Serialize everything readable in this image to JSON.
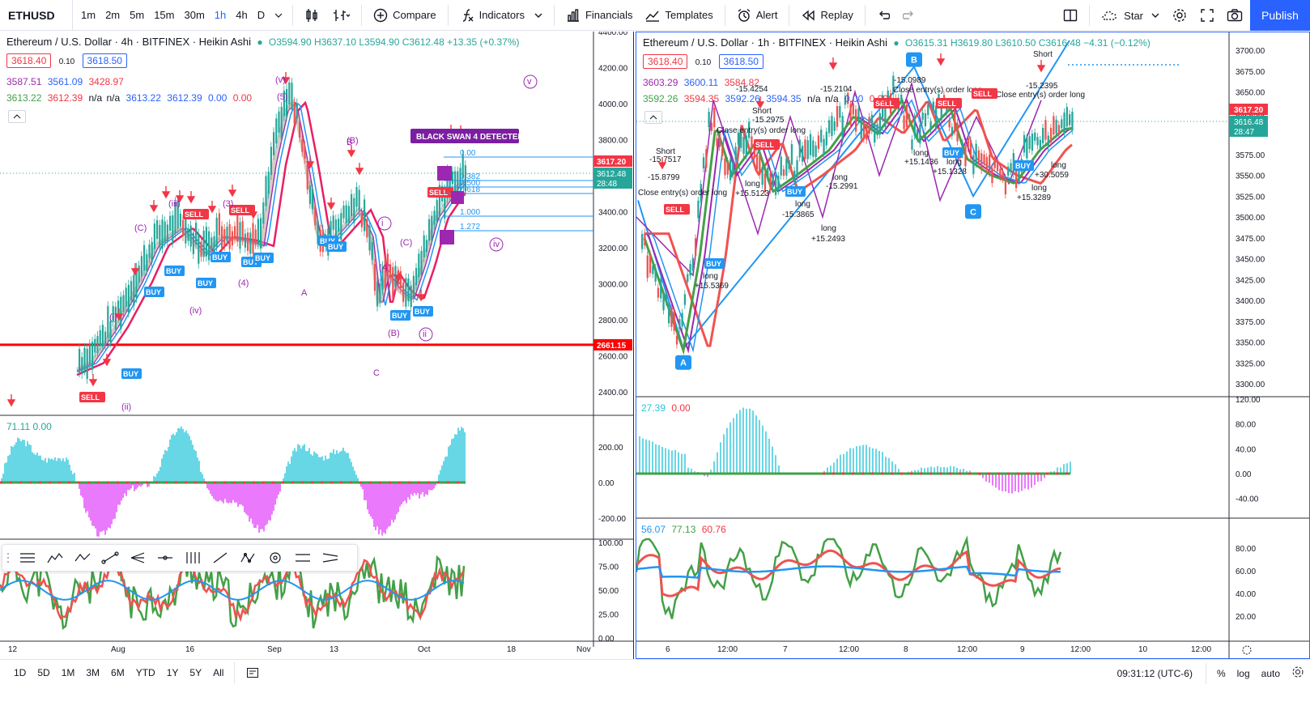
{
  "toolbar": {
    "symbol": "ETHUSD",
    "timeframes": [
      "1m",
      "2m",
      "5m",
      "15m",
      "30m",
      "1h",
      "4h",
      "D"
    ],
    "active_timeframe": "1h",
    "compare": "Compare",
    "indicators": "Indicators",
    "financials": "Financials",
    "templates": "Templates",
    "alert": "Alert",
    "replay": "Replay",
    "star": "Star",
    "publish": "Publish"
  },
  "left_chart": {
    "title": "Ethereum / U.S. Dollar · 4h · BITFINEX · Heikin Ashi",
    "ohlc": "O3594.90 H3637.10 L3594.90 C3612.48 +13.35 (+0.37%)",
    "sell_price": "3618.40",
    "spread": "0.10",
    "buy_price": "3618.50",
    "ind1": [
      "3587.51",
      "3561.09",
      "3428.97"
    ],
    "ind2": [
      "3613.22",
      "3612.39",
      "n/a",
      "n/a",
      "3613.22",
      "3612.39",
      "0.00",
      "0.00"
    ],
    "price_axis": [
      "4400.00",
      "4200.00",
      "4000.00",
      "3800.00",
      "3600.00",
      "3400.00",
      "3200.00",
      "3000.00",
      "2800.00",
      "2600.00",
      "2400.00"
    ],
    "last_price": "3617.20",
    "close_price": "3612.48",
    "countdown": "28:48",
    "support_price": "2661.15",
    "banner": "BLACK SWAN 4 DETECTED",
    "osc_legend": "71.11  0.00",
    "osc_axis": [
      "200.00",
      "0.00",
      "-200.00"
    ],
    "rsi_axis": [
      "100.00",
      "75.00",
      "50.00",
      "25.00",
      "0.00"
    ],
    "time_axis": [
      "12",
      "Aug",
      "16",
      "Sep",
      "13",
      "Oct",
      "18",
      "Nov"
    ],
    "wave_labels": [
      "(v)",
      "v",
      "(iii)",
      "(i)",
      "(ii)",
      "(iv)",
      "iv",
      "ii",
      "i",
      "(3)",
      "(4)",
      "(5)",
      "(B)",
      "(C)",
      "(A)",
      "(B)",
      "A",
      "B",
      "C",
      "(C)"
    ],
    "fib_labels": [
      "0.500",
      "0.382",
      "0.618",
      "1.000",
      "1.272",
      "0.00"
    ]
  },
  "right_chart": {
    "title": "Ethereum / U.S. Dollar · 1h · BITFINEX · Heikin Ashi",
    "ohlc": "O3615.31 H3619.80 L3610.50 C3616.48 −4.31 (−0.12%)",
    "sell_price": "3618.40",
    "spread": "0.10",
    "buy_price": "3618.50",
    "ind1": [
      "3603.29",
      "3600.11",
      "3584.82"
    ],
    "ind2": [
      "3592.26",
      "3594.35",
      "3592.26",
      "3594.35",
      "n/a",
      "n/a",
      "0.00",
      "0.00"
    ],
    "price_axis": [
      "3700.00",
      "3675.00",
      "3650.00",
      "3625.00",
      "3600.00",
      "3575.00",
      "3550.00",
      "3525.00",
      "3500.00",
      "3475.00",
      "3450.00",
      "3425.00",
      "3400.00",
      "3375.00",
      "3350.00",
      "3325.00",
      "3300.00"
    ],
    "last_price": "3617.20",
    "close_price": "3616.48",
    "countdown": "28:47",
    "osc_legend_a": "27.39",
    "osc_legend_b": "0.00",
    "osc_axis": [
      "120.00",
      "80.00",
      "40.00",
      "0.00",
      "-40.00"
    ],
    "stoch_legend": [
      "56.07",
      "77.13",
      "60.76"
    ],
    "stoch_axis": [
      "80.00",
      "60.00",
      "40.00",
      "20.00"
    ],
    "time_axis": [
      "6",
      "12:00",
      "7",
      "12:00",
      "8",
      "12:00",
      "9",
      "12:00",
      "10",
      "12:00"
    ],
    "annotations": [
      "Short",
      "-15.7517",
      "-15.8799",
      "Close entry(s) order long",
      "-15.4254",
      "Short",
      "-15.2975",
      "Close entry(s) order long",
      "-15.2104",
      "-15.0989",
      "Close entry(s) order long",
      "-15.2395",
      "Close entry(s) order long",
      "Short",
      "long",
      "+15.5369",
      "long",
      "+15.5123",
      "long",
      "-15.3865",
      "long",
      "+15.2493",
      "long",
      "-15.2991",
      "long",
      "+15.1436",
      "long",
      "+15.1328",
      "long",
      "+30.5059",
      "long",
      "+15.3289"
    ],
    "points": [
      "A",
      "B",
      "C"
    ]
  },
  "bottom": {
    "ranges": [
      "1D",
      "5D",
      "1M",
      "3M",
      "6M",
      "YTD",
      "1Y",
      "5Y",
      "All"
    ],
    "clock": "09:31:12 (UTC-6)",
    "pct": "%",
    "log": "log",
    "auto": "auto"
  },
  "colors": {
    "accent": "#2962ff",
    "sell": "#f23645",
    "buy": "#2196f3",
    "support": "#ff0000",
    "purple": "#9c27b0",
    "cyan": "#26c6da",
    "magenta": "#e040fb",
    "green": "#43a047",
    "red_line": "#ef5350"
  }
}
